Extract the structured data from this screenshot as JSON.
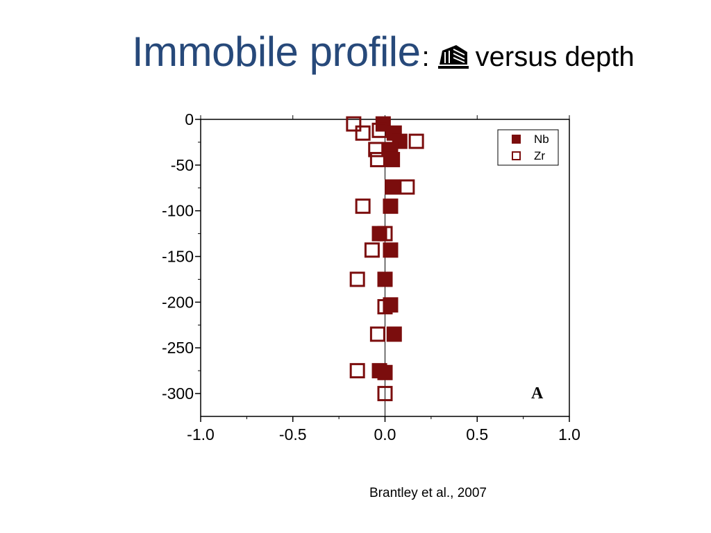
{
  "slide": {
    "title": "Immobile profile",
    "title_colon": ":",
    "title_symbol_icon": "tau-symbol-icon",
    "title_suffix": "versus depth",
    "citation": "Brantley et al., 2007",
    "title_color": "#27497a"
  },
  "chart_data": {
    "type": "scatter",
    "title": "",
    "xlabel": "",
    "ylabel": "",
    "xlim": [
      -1.0,
      1.0
    ],
    "ylim": [
      -325,
      0
    ],
    "x_ticks": [
      -1.0,
      -0.5,
      0.0,
      0.5,
      1.0
    ],
    "x_tick_labels": [
      "-1.0",
      "-0.5",
      "0.0",
      "0.5",
      "1.0"
    ],
    "y_ticks": [
      0,
      -50,
      -100,
      -150,
      -200,
      -250,
      -300
    ],
    "y_tick_labels": [
      "0",
      "-50",
      "-100",
      "-150",
      "-200",
      "-250",
      "-300"
    ],
    "grid": false,
    "zero_line": true,
    "legend_position": "top-right",
    "panel_label": "A",
    "color": "#7b0d0d",
    "series": [
      {
        "name": "Nb",
        "marker": "filled-square",
        "points": [
          {
            "x": -0.01,
            "y": -5
          },
          {
            "x": 0.05,
            "y": -15
          },
          {
            "x": 0.08,
            "y": -24
          },
          {
            "x": 0.03,
            "y": -33
          },
          {
            "x": 0.04,
            "y": -44
          },
          {
            "x": 0.04,
            "y": -74
          },
          {
            "x": 0.03,
            "y": -95
          },
          {
            "x": -0.03,
            "y": -125
          },
          {
            "x": 0.03,
            "y": -143
          },
          {
            "x": 0.0,
            "y": -175
          },
          {
            "x": 0.03,
            "y": -203
          },
          {
            "x": 0.05,
            "y": -235
          },
          {
            "x": -0.03,
            "y": -275
          },
          {
            "x": 0.0,
            "y": -277
          }
        ]
      },
      {
        "name": "Zr",
        "marker": "open-square",
        "points": [
          {
            "x": -0.17,
            "y": -5
          },
          {
            "x": -0.03,
            "y": -12
          },
          {
            "x": -0.12,
            "y": -15
          },
          {
            "x": 0.17,
            "y": -24
          },
          {
            "x": -0.05,
            "y": -33
          },
          {
            "x": -0.04,
            "y": -44
          },
          {
            "x": 0.12,
            "y": -74
          },
          {
            "x": -0.12,
            "y": -95
          },
          {
            "x": 0.0,
            "y": -125
          },
          {
            "x": -0.07,
            "y": -143
          },
          {
            "x": -0.15,
            "y": -175
          },
          {
            "x": 0.0,
            "y": -205
          },
          {
            "x": -0.04,
            "y": -235
          },
          {
            "x": -0.15,
            "y": -275
          },
          {
            "x": 0.0,
            "y": -300
          }
        ]
      }
    ]
  }
}
